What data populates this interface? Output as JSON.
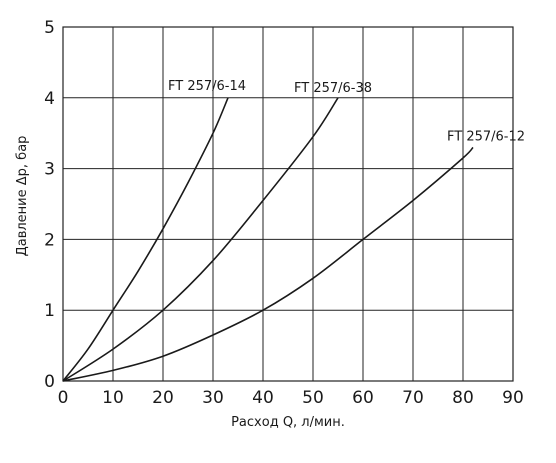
{
  "chart_data": {
    "type": "line",
    "xlabel": "Расход Q, л/мин.",
    "ylabel": "Давление Δp, бар",
    "xlim": [
      0,
      90
    ],
    "ylim": [
      0,
      5
    ],
    "x_ticks": [
      "0",
      "10",
      "20",
      "30",
      "40",
      "50",
      "60",
      "70",
      "80",
      "90"
    ],
    "y_ticks": [
      "0",
      "1",
      "2",
      "3",
      "4",
      "5"
    ],
    "grid": true,
    "series": [
      {
        "name": "FT 257/6-14",
        "x": [
          0,
          5,
          10,
          15,
          20,
          25,
          30,
          33
        ],
        "y": [
          0,
          0.45,
          1.0,
          1.55,
          2.15,
          2.8,
          3.5,
          4.0
        ]
      },
      {
        "name": "FT 257/6-38",
        "x": [
          0,
          10,
          20,
          30,
          40,
          50,
          55
        ],
        "y": [
          0,
          0.45,
          1.0,
          1.7,
          2.55,
          3.45,
          4.0
        ]
      },
      {
        "name": "FT 257/6-12",
        "x": [
          0,
          10,
          20,
          30,
          40,
          50,
          60,
          70,
          80,
          82
        ],
        "y": [
          0,
          0.15,
          0.35,
          0.65,
          1.0,
          1.45,
          2.0,
          2.55,
          3.15,
          3.3
        ]
      }
    ]
  }
}
